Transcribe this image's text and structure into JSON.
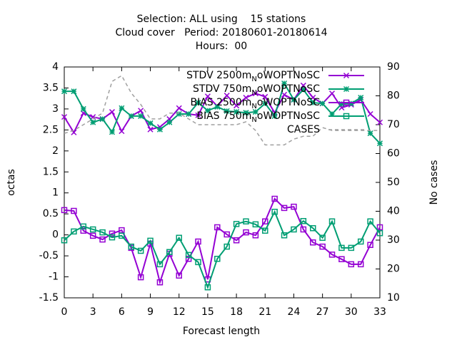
{
  "chart_data": {
    "type": "line",
    "title": [
      "Selection: ALL using    15 stations",
      "Cloud cover   Period: 20180601-20180614",
      "Hours:  00"
    ],
    "xlabel": "Forecast length",
    "ylabel": "octas",
    "y2label": "No cases",
    "x": [
      0,
      1,
      2,
      3,
      4,
      5,
      6,
      7,
      8,
      9,
      10,
      11,
      12,
      13,
      14,
      15,
      16,
      17,
      18,
      19,
      20,
      21,
      22,
      23,
      24,
      25,
      26,
      27,
      28,
      29,
      30,
      31,
      32,
      33
    ],
    "xlim": [
      0,
      33
    ],
    "xticks": [
      0,
      3,
      6,
      9,
      12,
      15,
      18,
      21,
      24,
      27,
      30,
      33
    ],
    "ylim": [
      -1.5,
      4
    ],
    "yticks": [
      -1.5,
      -1,
      -0.5,
      0,
      0.5,
      1,
      1.5,
      2,
      2.5,
      3,
      3.5,
      4
    ],
    "y2lim": [
      10,
      90
    ],
    "y2ticks": [
      10,
      20,
      30,
      40,
      50,
      60,
      70,
      80,
      90
    ],
    "legend": "top-right",
    "series": [
      {
        "name": "STDV 2500m_NoWOPTNoSC",
        "color": "#9400d3",
        "marker": "cross",
        "values": [
          2.81,
          2.44,
          2.9,
          2.81,
          2.76,
          2.93,
          2.47,
          2.83,
          2.96,
          2.51,
          2.57,
          2.76,
          3.02,
          2.88,
          2.85,
          3.3,
          3.07,
          3.32,
          3.08,
          3.27,
          3.37,
          3.29,
          2.91,
          3.34,
          3.22,
          3.56,
          3.27,
          3.13,
          3.37,
          3.03,
          3.1,
          3.22,
          2.88,
          2.68
        ]
      },
      {
        "name": "STDV 750m_NoWOPTNoSC",
        "color": "#009e73",
        "marker": "star",
        "values": [
          3.42,
          3.42,
          3.0,
          2.68,
          2.76,
          2.45,
          3.02,
          2.83,
          2.83,
          2.66,
          2.51,
          2.68,
          2.88,
          2.88,
          3.15,
          2.96,
          3.05,
          2.95,
          2.93,
          2.91,
          2.93,
          3.13,
          2.83,
          3.61,
          3.22,
          3.46,
          3.15,
          3.13,
          2.88,
          3.12,
          3.13,
          3.27,
          2.42,
          2.18
        ]
      },
      {
        "name": "BIAS 2500m_NoWOPTNoSC",
        "color": "#9400d3",
        "marker": "box",
        "values": [
          0.59,
          0.57,
          0.1,
          -0.02,
          -0.11,
          0.03,
          0.11,
          -0.31,
          -1.01,
          -0.21,
          -1.13,
          -0.45,
          -0.97,
          -0.57,
          -0.16,
          -1.06,
          0.18,
          0.01,
          -0.13,
          0.06,
          -0.01,
          0.32,
          0.86,
          0.64,
          0.67,
          0.13,
          -0.18,
          -0.28,
          -0.47,
          -0.58,
          -0.7,
          -0.7,
          -0.24,
          0.18
        ]
      },
      {
        "name": "BIAS 750m_NoWOPTNoSC",
        "color": "#009e73",
        "marker": "box",
        "values": [
          -0.13,
          0.08,
          0.2,
          0.13,
          0.06,
          -0.06,
          -0.02,
          -0.28,
          -0.38,
          -0.14,
          -0.7,
          -0.41,
          -0.07,
          -0.48,
          -0.65,
          -1.25,
          -0.57,
          -0.28,
          0.26,
          0.32,
          0.25,
          0.1,
          0.55,
          -0.01,
          0.13,
          0.33,
          0.16,
          -0.07,
          0.32,
          -0.31,
          -0.31,
          -0.16,
          0.32,
          0.04
        ]
      },
      {
        "name": "CASES",
        "color": "#a0a0a0",
        "dashed": true,
        "axis": "y2",
        "values": [
          67,
          68,
          70,
          72,
          74,
          85,
          87,
          81,
          77,
          72,
          72,
          74,
          74,
          72,
          70,
          70,
          70,
          70,
          70,
          71,
          68,
          63,
          63,
          63,
          65,
          66,
          66,
          69,
          68,
          68,
          68,
          68,
          68,
          68
        ]
      }
    ]
  }
}
